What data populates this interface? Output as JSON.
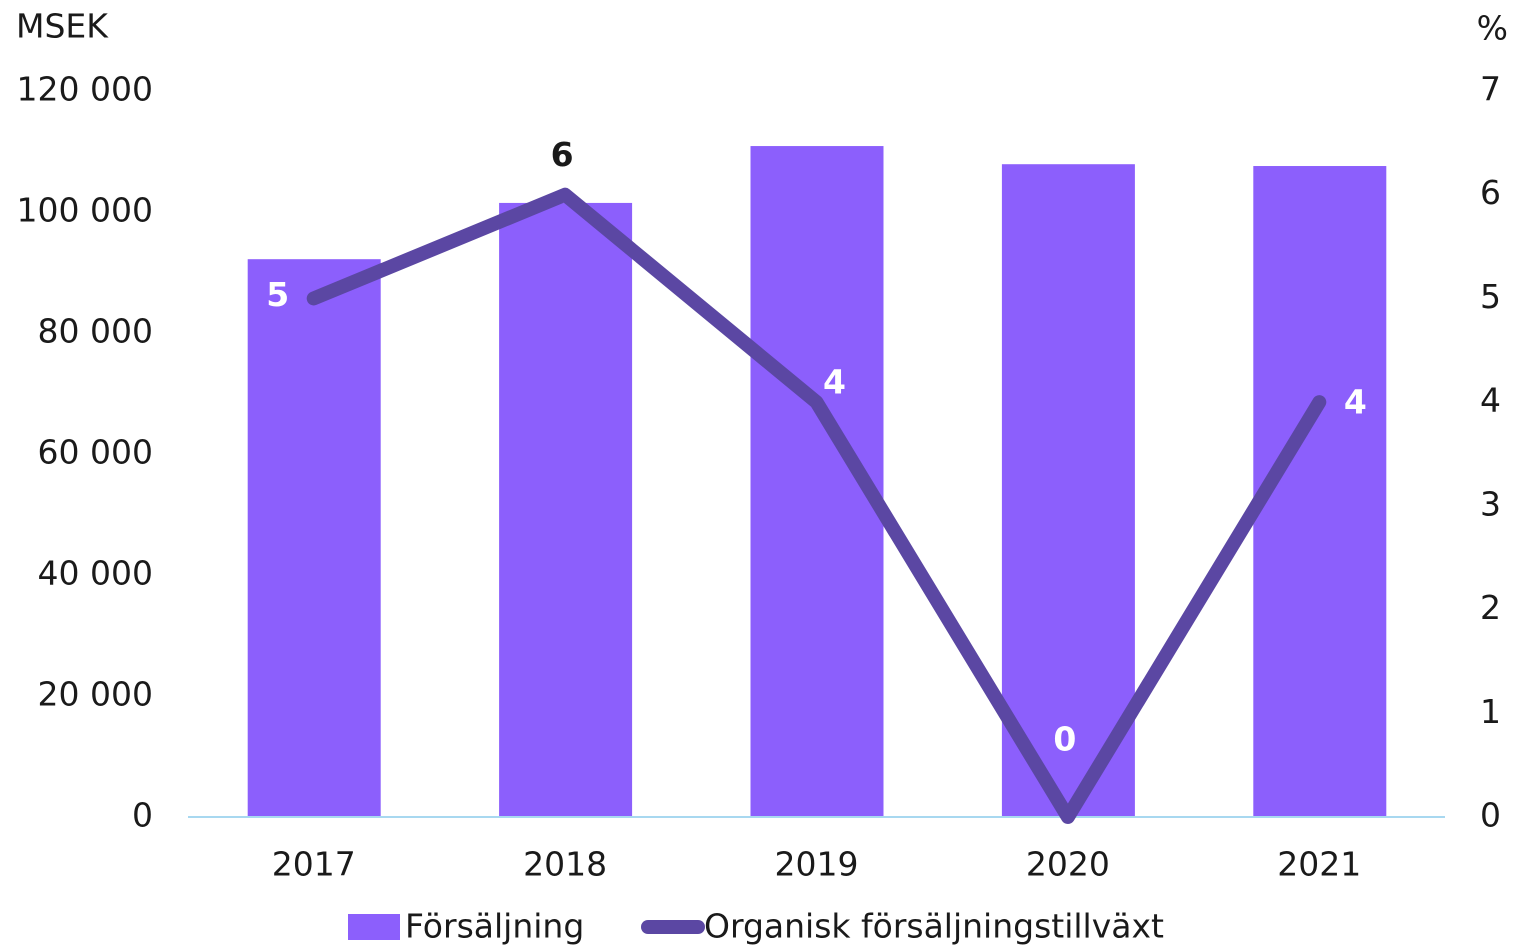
{
  "chart_data": {
    "type": "bar",
    "y_axis_label": "MSEK",
    "y2_axis_label": "%",
    "categories": [
      "2017",
      "2018",
      "2019",
      "2020",
      "2021"
    ],
    "series": [
      {
        "name": "Försäljning",
        "color": "#8c5ffc",
        "type": "bar",
        "values": [
          92200,
          101500,
          110900,
          107900,
          107600
        ]
      },
      {
        "name": "Organisk försäljningstillväxt",
        "color": "#5b47a3",
        "type": "line",
        "axis": "y2",
        "values": [
          5,
          6,
          4,
          0,
          4
        ]
      }
    ],
    "ylim": [
      0,
      120000
    ],
    "yticks": [
      0,
      {
        "value": 20000,
        "label": "20 000"
      },
      {
        "value": 40000,
        "label": "40 000"
      },
      {
        "value": 60000,
        "label": "60 000"
      },
      {
        "value": 80000,
        "label": "80 000"
      },
      {
        "value": 100000,
        "label": "100 000"
      },
      {
        "value": 120000,
        "label": "120 000"
      }
    ],
    "y2lim": [
      0,
      7
    ],
    "y2ticks": [
      0,
      1,
      2,
      3,
      4,
      5,
      6,
      7
    ],
    "grid": false,
    "legend": "bottom"
  }
}
